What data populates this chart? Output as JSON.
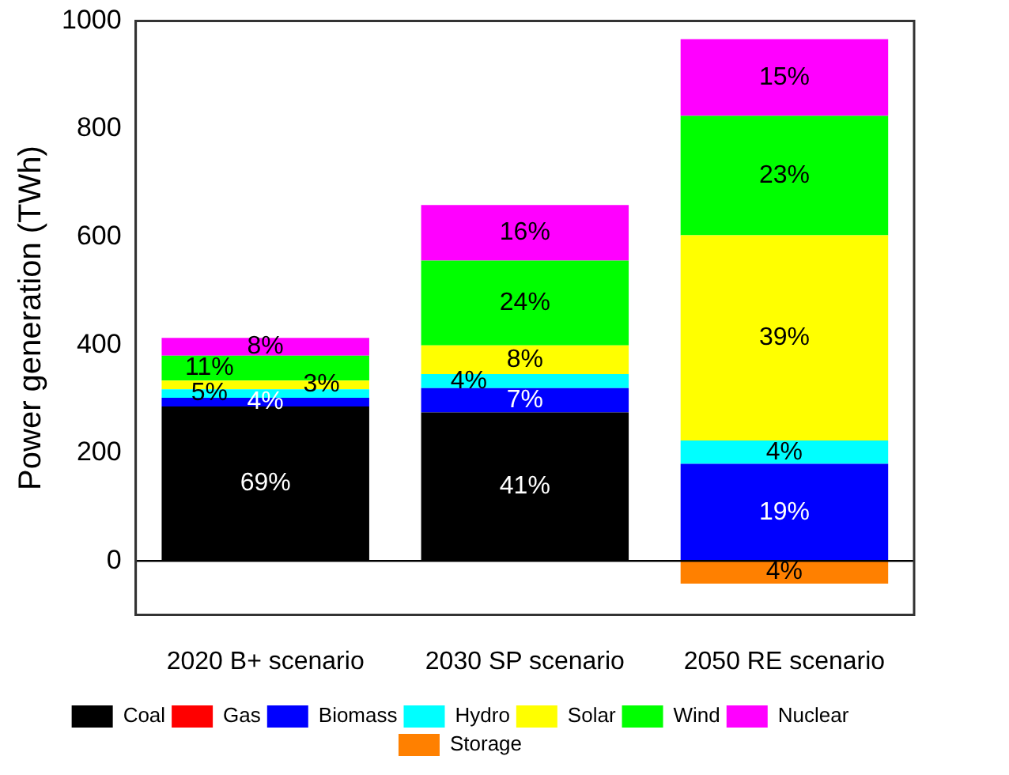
{
  "chart_data": {
    "type": "bar",
    "stacked": true,
    "ylabel": "Power generation (TWh)",
    "categories": [
      "2020 B+ scenario",
      "2030 SP scenario",
      "2050 RE scenario"
    ],
    "series": [
      {
        "name": "Coal",
        "color": "#000000",
        "values": [
          286,
          275,
          0
        ]
      },
      {
        "name": "Gas",
        "color": "#ff0000",
        "values": [
          0,
          0,
          0
        ]
      },
      {
        "name": "Biomass",
        "color": "#0000ff",
        "values": [
          16,
          45,
          180
        ]
      },
      {
        "name": "Hydro",
        "color": "#00ffff",
        "values": [
          16,
          26,
          43
        ]
      },
      {
        "name": "Solar",
        "color": "#ffff00",
        "values": [
          16,
          53,
          380
        ]
      },
      {
        "name": "Wind",
        "color": "#00ff00",
        "values": [
          46,
          157,
          221
        ]
      },
      {
        "name": "Nuclear",
        "color": "#ff00ff",
        "values": [
          33,
          103,
          142
        ]
      },
      {
        "name": "Storage",
        "color": "#ff8000",
        "values": [
          0,
          0,
          -42
        ]
      }
    ],
    "annotations": [
      "69%",
      "4%",
      "5%",
      "3%",
      "11%",
      "8%",
      "41%",
      "7%",
      "4%",
      "8%",
      "24%",
      "16%",
      "19%",
      "4%",
      "39%",
      "23%",
      "15%",
      "4%"
    ],
    "ylim": [
      -100,
      1000
    ],
    "yticks": [
      0,
      200,
      400,
      600,
      800,
      1000
    ],
    "grid": false,
    "legend": "bottom",
    "ref_lines": [
      {
        "axis": "y",
        "value": 0
      }
    ]
  }
}
